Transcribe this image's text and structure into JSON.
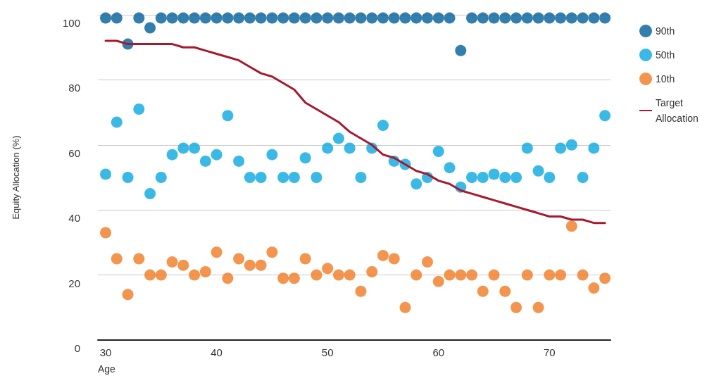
{
  "chart_data": {
    "type": "scatter",
    "xlabel": "Age",
    "ylabel": "Equity Allocation (%)",
    "x": [
      30,
      31,
      32,
      33,
      34,
      35,
      36,
      37,
      38,
      39,
      40,
      41,
      42,
      43,
      44,
      45,
      46,
      47,
      48,
      49,
      50,
      51,
      52,
      53,
      54,
      55,
      56,
      57,
      58,
      59,
      60,
      61,
      62,
      63,
      64,
      65,
      66,
      67,
      68,
      69,
      70,
      71,
      72,
      73,
      74,
      75
    ],
    "xlim": [
      29.3,
      75.5
    ],
    "xticks": [
      30,
      40,
      50,
      60,
      70
    ],
    "ylim": [
      0,
      100
    ],
    "yticks": [
      0,
      20,
      40,
      60,
      80,
      100
    ],
    "grid": "y",
    "legend": "top right",
    "marker": "circle",
    "series": [
      {
        "name": "90th",
        "color": "#005e99",
        "values": [
          99,
          99,
          91,
          99,
          96,
          99,
          99,
          99,
          99,
          99,
          99,
          99,
          99,
          99,
          99,
          99,
          99,
          99,
          99,
          99,
          99,
          99,
          99,
          99,
          99,
          99,
          99,
          99,
          99,
          99,
          99,
          99,
          89,
          99,
          99,
          99,
          99,
          99,
          99,
          99,
          99,
          99,
          99,
          99,
          99,
          99
        ]
      },
      {
        "name": "50th",
        "color": "#0aa8e0",
        "values": [
          51,
          67,
          50,
          71,
          45,
          50,
          57,
          59,
          59,
          55,
          57,
          69,
          55,
          50,
          50,
          57,
          50,
          50,
          56,
          50,
          59,
          62,
          59,
          50,
          59,
          66,
          55,
          54,
          48,
          50,
          58,
          53,
          47,
          50,
          50,
          51,
          50,
          50,
          59,
          52,
          50,
          59,
          60,
          50,
          59,
          69
        ]
      },
      {
        "name": "10th",
        "color": "#f07b22",
        "values": [
          33,
          25,
          14,
          25,
          20,
          20,
          24,
          23,
          20,
          21,
          27,
          19,
          25,
          23,
          23,
          27,
          19,
          19,
          25,
          20,
          22,
          20,
          20,
          15,
          21,
          26,
          25,
          10,
          20,
          24,
          18,
          20,
          20,
          20,
          15,
          20,
          15,
          10,
          20,
          10,
          20,
          20,
          35,
          20,
          16,
          19
        ]
      },
      {
        "name": "Target\nAllocation",
        "type": "line",
        "color": "#a6192e",
        "line_style": "solid",
        "marker": "none",
        "values": [
          92,
          92,
          91,
          91,
          91,
          91,
          91,
          90,
          90,
          89,
          88,
          87,
          86,
          84,
          82,
          81,
          79,
          77,
          73,
          71,
          69,
          67,
          64,
          62,
          60,
          57,
          56,
          54,
          52,
          51,
          49,
          48,
          46,
          45,
          44,
          43,
          42,
          41,
          40,
          39,
          38,
          38,
          37,
          37,
          36,
          36
        ]
      }
    ]
  }
}
